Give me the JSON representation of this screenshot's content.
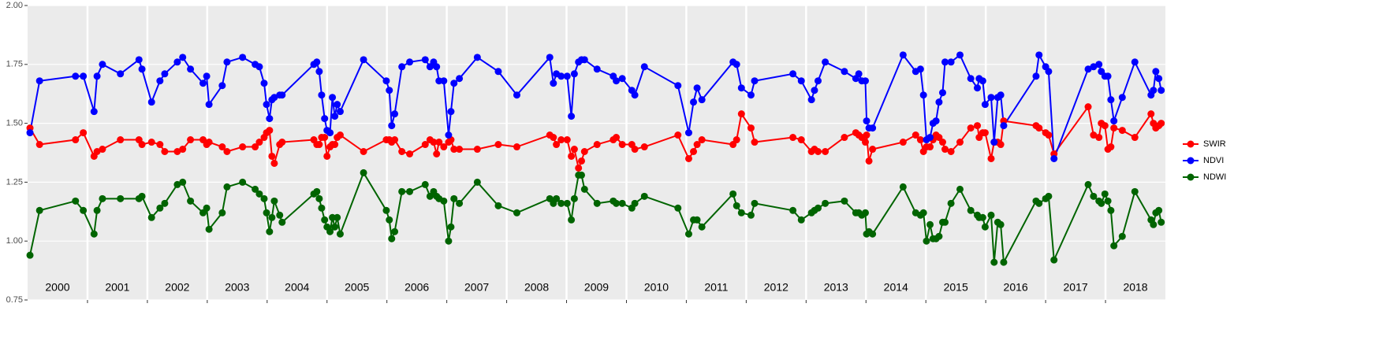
{
  "chart_data": {
    "type": "line",
    "x": [
      2000.04,
      2000.2,
      2000.8,
      2000.93,
      2001.11,
      2001.16,
      2001.25,
      2001.55,
      2001.86,
      2001.91,
      2002.07,
      2002.21,
      2002.29,
      2002.5,
      2002.59,
      2002.72,
      2002.93,
      2002.99,
      2003.03,
      2003.25,
      2003.33,
      2003.59,
      2003.8,
      2003.87,
      2003.95,
      2003.99,
      2004.04,
      2004.08,
      2004.12,
      2004.21,
      2004.25,
      2004.78,
      2004.83,
      2004.87,
      2004.91,
      2004.96,
      2005.0,
      2005.05,
      2005.09,
      2005.13,
      2005.17,
      2005.22,
      2005.61,
      2005.99,
      2006.04,
      2006.08,
      2006.13,
      2006.25,
      2006.38,
      2006.64,
      2006.72,
      2006.78,
      2006.83,
      2006.87,
      2006.95,
      2007.03,
      2007.07,
      2007.12,
      2007.21,
      2007.51,
      2007.86,
      2008.17,
      2008.72,
      2008.78,
      2008.83,
      2008.91,
      2009.01,
      2009.08,
      2009.13,
      2009.2,
      2009.25,
      2009.3,
      2009.51,
      2009.78,
      2009.83,
      2009.93,
      2010.09,
      2010.14,
      2010.3,
      2010.86,
      2011.04,
      2011.12,
      2011.18,
      2011.26,
      2011.78,
      2011.84,
      2011.92,
      2012.08,
      2012.14,
      2012.78,
      2012.92,
      2013.09,
      2013.14,
      2013.2,
      2013.32,
      2013.64,
      2013.83,
      2013.88,
      2013.93,
      2013.99,
      2014.01,
      2014.05,
      2014.11,
      2014.62,
      2014.83,
      2014.91,
      2014.96,
      2015.01,
      2015.07,
      2015.12,
      2015.17,
      2015.22,
      2015.28,
      2015.32,
      2015.42,
      2015.57,
      2015.75,
      2015.86,
      2015.89,
      2015.95,
      2015.99,
      2016.09,
      2016.14,
      2016.2,
      2016.25,
      2016.3,
      2016.84,
      2016.89,
      2017.0,
      2017.05,
      2017.14,
      2017.71,
      2017.8,
      2017.89,
      2017.93,
      2017.99,
      2018.04,
      2018.09,
      2018.14,
      2018.28,
      2018.49,
      2018.76,
      2018.8,
      2018.84,
      2018.89,
      2018.93
    ],
    "series": [
      {
        "name": "SWIR",
        "color": "#ff0000",
        "values": [
          1.48,
          1.41,
          1.43,
          1.46,
          1.36,
          1.38,
          1.39,
          1.43,
          1.43,
          1.41,
          1.42,
          1.41,
          1.38,
          1.38,
          1.39,
          1.43,
          1.43,
          1.41,
          1.42,
          1.4,
          1.38,
          1.4,
          1.4,
          1.42,
          1.44,
          1.46,
          1.47,
          1.36,
          1.33,
          1.41,
          1.42,
          1.43,
          1.41,
          1.41,
          1.44,
          1.44,
          1.36,
          1.4,
          1.41,
          1.41,
          1.44,
          1.45,
          1.38,
          1.43,
          1.43,
          1.42,
          1.43,
          1.38,
          1.37,
          1.41,
          1.43,
          1.42,
          1.37,
          1.42,
          1.4,
          1.42,
          1.43,
          1.39,
          1.39,
          1.39,
          1.41,
          1.4,
          1.45,
          1.44,
          1.41,
          1.43,
          1.43,
          1.36,
          1.39,
          1.31,
          1.34,
          1.38,
          1.41,
          1.43,
          1.44,
          1.41,
          1.41,
          1.39,
          1.4,
          1.45,
          1.35,
          1.38,
          1.41,
          1.43,
          1.41,
          1.43,
          1.54,
          1.48,
          1.42,
          1.44,
          1.43,
          1.38,
          1.39,
          1.38,
          1.38,
          1.44,
          1.46,
          1.45,
          1.44,
          1.42,
          1.45,
          1.34,
          1.39,
          1.42,
          1.45,
          1.43,
          1.38,
          1.4,
          1.4,
          1.43,
          1.45,
          1.44,
          1.42,
          1.39,
          1.38,
          1.42,
          1.48,
          1.49,
          1.44,
          1.46,
          1.46,
          1.35,
          1.42,
          1.42,
          1.41,
          1.51,
          1.49,
          1.48,
          1.46,
          1.45,
          1.37,
          1.57,
          1.45,
          1.44,
          1.5,
          1.49,
          1.39,
          1.4,
          1.48,
          1.47,
          1.44,
          1.54,
          1.5,
          1.48,
          1.49,
          1.5
        ]
      },
      {
        "name": "NDVI",
        "color": "#0000ff",
        "values": [
          1.46,
          1.68,
          1.7,
          1.7,
          1.55,
          1.7,
          1.75,
          1.71,
          1.77,
          1.73,
          1.59,
          1.68,
          1.71,
          1.76,
          1.78,
          1.73,
          1.67,
          1.7,
          1.58,
          1.66,
          1.76,
          1.78,
          1.75,
          1.74,
          1.67,
          1.58,
          1.52,
          1.6,
          1.61,
          1.62,
          1.62,
          1.75,
          1.76,
          1.72,
          1.62,
          1.52,
          1.47,
          1.46,
          1.61,
          1.53,
          1.58,
          1.55,
          1.77,
          1.68,
          1.64,
          1.49,
          1.54,
          1.74,
          1.76,
          1.77,
          1.74,
          1.76,
          1.74,
          1.68,
          1.68,
          1.45,
          1.55,
          1.67,
          1.69,
          1.78,
          1.72,
          1.62,
          1.78,
          1.67,
          1.71,
          1.7,
          1.7,
          1.53,
          1.71,
          1.76,
          1.77,
          1.77,
          1.73,
          1.7,
          1.68,
          1.69,
          1.64,
          1.62,
          1.74,
          1.66,
          1.46,
          1.59,
          1.65,
          1.6,
          1.76,
          1.75,
          1.65,
          1.62,
          1.68,
          1.71,
          1.68,
          1.6,
          1.64,
          1.68,
          1.76,
          1.72,
          1.69,
          1.71,
          1.68,
          1.68,
          1.51,
          1.48,
          1.48,
          1.79,
          1.72,
          1.73,
          1.62,
          1.43,
          1.44,
          1.5,
          1.51,
          1.59,
          1.63,
          1.76,
          1.76,
          1.79,
          1.69,
          1.65,
          1.69,
          1.68,
          1.58,
          1.61,
          1.42,
          1.61,
          1.62,
          1.49,
          1.7,
          1.79,
          1.74,
          1.72,
          1.35,
          1.73,
          1.74,
          1.75,
          1.72,
          1.7,
          1.7,
          1.6,
          1.51,
          1.61,
          1.76,
          1.62,
          1.64,
          1.72,
          1.69,
          1.64
        ]
      },
      {
        "name": "NDWI",
        "color": "#006400",
        "values": [
          0.94,
          1.13,
          1.17,
          1.13,
          1.03,
          1.13,
          1.18,
          1.18,
          1.18,
          1.19,
          1.1,
          1.14,
          1.16,
          1.24,
          1.25,
          1.17,
          1.12,
          1.14,
          1.05,
          1.12,
          1.23,
          1.25,
          1.22,
          1.2,
          1.18,
          1.12,
          1.04,
          1.1,
          1.17,
          1.11,
          1.08,
          1.2,
          1.21,
          1.18,
          1.14,
          1.09,
          1.06,
          1.04,
          1.1,
          1.06,
          1.1,
          1.03,
          1.29,
          1.13,
          1.09,
          1.01,
          1.04,
          1.21,
          1.21,
          1.24,
          1.19,
          1.21,
          1.19,
          1.18,
          1.17,
          1.0,
          1.06,
          1.18,
          1.16,
          1.25,
          1.15,
          1.12,
          1.18,
          1.16,
          1.18,
          1.16,
          1.16,
          1.09,
          1.18,
          1.28,
          1.28,
          1.22,
          1.16,
          1.17,
          1.16,
          1.16,
          1.14,
          1.16,
          1.19,
          1.14,
          1.03,
          1.09,
          1.09,
          1.06,
          1.2,
          1.15,
          1.12,
          1.11,
          1.16,
          1.13,
          1.09,
          1.12,
          1.13,
          1.14,
          1.16,
          1.17,
          1.12,
          1.12,
          1.11,
          1.12,
          1.03,
          1.04,
          1.03,
          1.23,
          1.12,
          1.11,
          1.12,
          1.0,
          1.07,
          1.01,
          1.01,
          1.02,
          1.08,
          1.08,
          1.16,
          1.22,
          1.13,
          1.11,
          1.1,
          1.1,
          1.06,
          1.11,
          0.91,
          1.08,
          1.07,
          0.91,
          1.17,
          1.16,
          1.18,
          1.19,
          0.92,
          1.24,
          1.19,
          1.17,
          1.16,
          1.2,
          1.17,
          1.13,
          0.98,
          1.02,
          1.21,
          1.09,
          1.07,
          1.12,
          1.13,
          1.08
        ]
      }
    ],
    "xlim": [
      2000,
      2019
    ],
    "xticks": [
      2001,
      2002,
      2003,
      2004,
      2005,
      2006,
      2007,
      2008,
      2009,
      2010,
      2011,
      2012,
      2013,
      2014,
      2015,
      2016,
      2017,
      2018
    ],
    "year_labels": [
      2000,
      2001,
      2002,
      2003,
      2004,
      2005,
      2006,
      2007,
      2008,
      2009,
      2010,
      2011,
      2012,
      2013,
      2014,
      2015,
      2016,
      2017,
      2018
    ],
    "ylim": [
      0.75,
      2.0
    ],
    "yticks": [
      0.75,
      {
        "value": 1.0,
        "label": "1.00"
      },
      1.25,
      {
        "value": 1.5,
        "label": "1.50"
      },
      1.75,
      {
        "value": 2.0,
        "label": "2.00"
      }
    ],
    "grid": true,
    "legend": "right"
  }
}
